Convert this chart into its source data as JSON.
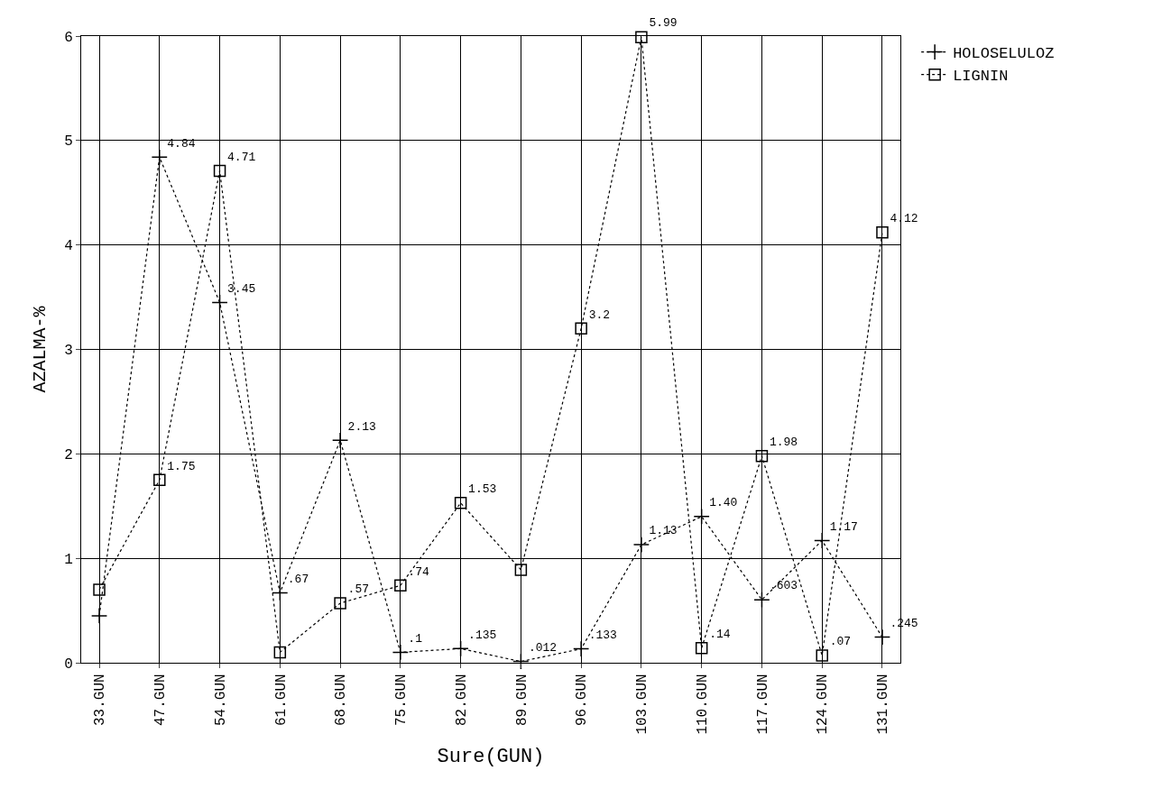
{
  "chart_data": {
    "type": "line",
    "xlabel": "Sure(GUN)",
    "ylabel": "AZALMA-%",
    "categories": [
      "33.GUN",
      "47.GUN",
      "54.GUN",
      "61.GUN",
      "68.GUN",
      "75.GUN",
      "82.GUN",
      "89.GUN",
      "96.GUN",
      "103.GUN",
      "110.GUN",
      "117.GUN",
      "124.GUN",
      "131.GUN"
    ],
    "series": [
      {
        "name": "HOLOSELULOZ",
        "color": "#000000",
        "marker": "cross",
        "values": [
          0.45,
          4.84,
          3.45,
          0.67,
          2.13,
          0.1,
          0.135,
          0.012,
          0.133,
          1.13,
          1.4,
          0.603,
          1.17,
          0.245
        ],
        "value_labels": [
          null,
          "4.84",
          "3.45",
          ".67",
          "2.13",
          ".1",
          ".135",
          ".012",
          ".133",
          "1.13",
          "1.40",
          ".603",
          "1.17",
          ".245"
        ]
      },
      {
        "name": "LIGNIN",
        "color": "#000000",
        "marker": "square",
        "values": [
          0.7,
          1.75,
          4.71,
          0.1,
          0.57,
          0.74,
          1.53,
          0.89,
          3.2,
          5.99,
          0.14,
          1.98,
          0.07,
          4.12
        ],
        "value_labels": [
          null,
          "1.75",
          "4.71",
          null,
          ".57",
          ".74",
          "1.53",
          null,
          "3.2",
          "5.99",
          ".14",
          "1.98",
          ".07",
          "4.12"
        ]
      }
    ],
    "ylim": [
      0,
      6
    ],
    "yticks": [
      0,
      1,
      2,
      3,
      4,
      5,
      6
    ],
    "grid": true,
    "legend": "top right",
    "line_style": "dotted"
  }
}
